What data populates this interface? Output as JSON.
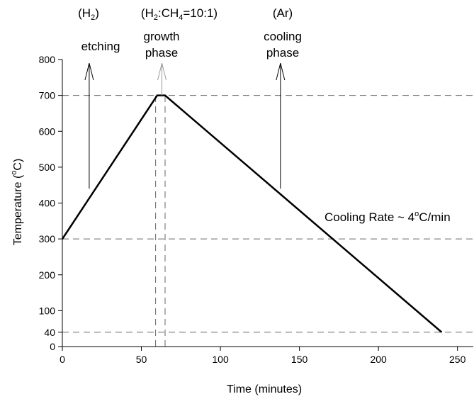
{
  "chart_data": {
    "type": "line",
    "title": "",
    "xlabel": "Time (minutes)",
    "ylabel": {
      "main": "Temperature (",
      "sup": "o",
      "unit": "C)"
    },
    "xlim": [
      0,
      260
    ],
    "ylim": [
      0,
      800
    ],
    "xticks": [
      0,
      50,
      100,
      150,
      200,
      250
    ],
    "yticks": [
      0,
      40,
      100,
      200,
      300,
      400,
      500,
      600,
      700,
      800
    ],
    "grid": false,
    "series": [
      {
        "x": [
          0,
          60,
          65,
          240
        ],
        "y": [
          300,
          700,
          700,
          40
        ],
        "color": "#000000"
      }
    ],
    "reference_lines": {
      "horizontal": [
        300,
        700,
        40
      ],
      "vertical": [
        59,
        65
      ]
    },
    "annotations": {
      "etching": {
        "gas": "(H2)",
        "gas_main": "(H",
        "gas_sub": "2",
        "gas_end": ")",
        "label": "etching",
        "arrow_x": 17,
        "arrow_from_y": 440,
        "arrow_to_y": 790
      },
      "growth": {
        "gas_parts": [
          "(H",
          "2",
          ":CH",
          "4",
          "=10:1)"
        ],
        "line1": "growth",
        "line2": "phase",
        "arrow_x": 63,
        "arrow_from_y": 700,
        "arrow_to_y": 790
      },
      "cooling": {
        "gas": "(Ar)",
        "line1": "cooling",
        "line2": "phase",
        "arrow_x": 138,
        "arrow_from_y": 440,
        "arrow_to_y": 790
      },
      "rate": {
        "prefix": "Cooling Rate ~ 4",
        "sup": "o",
        "suffix": "C/min"
      }
    }
  }
}
